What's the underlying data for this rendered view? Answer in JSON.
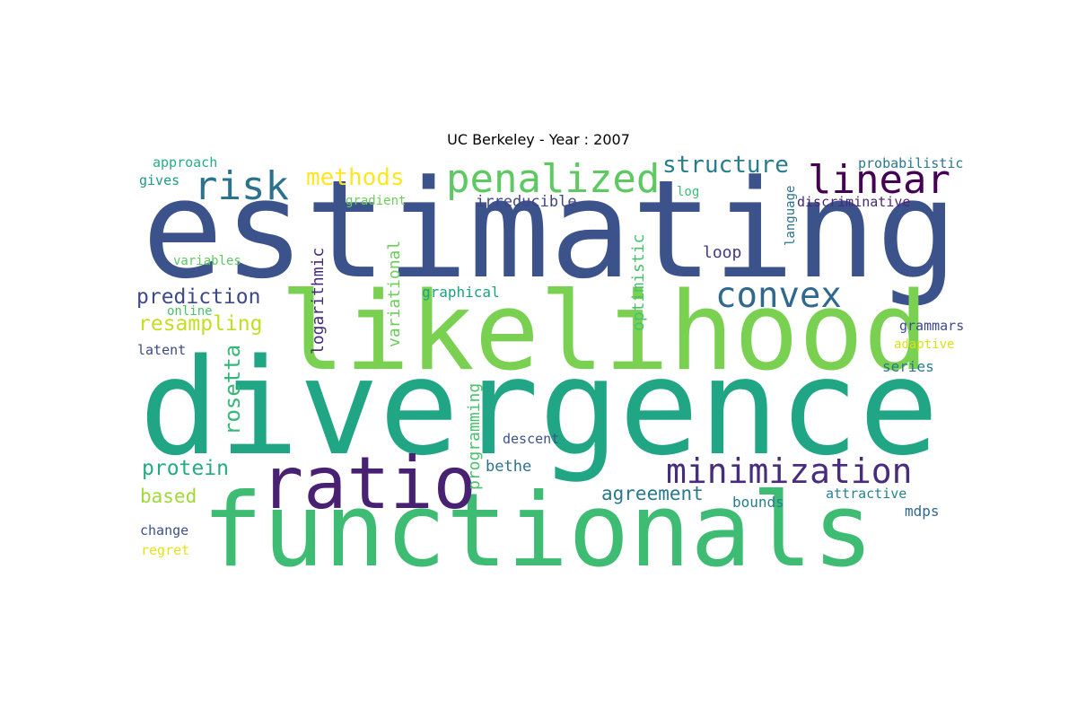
{
  "title": "UC Berkeley - Year : 2007",
  "words": [
    {
      "text": "estimating",
      "color": "#3b528b"
    },
    {
      "text": "divergence",
      "color": "#21a685"
    },
    {
      "text": "likelihood",
      "color": "#7ad151"
    },
    {
      "text": "functionals",
      "color": "#3fbc73"
    },
    {
      "text": "ratio",
      "color": "#482173"
    },
    {
      "text": "minimization",
      "color": "#472d7b"
    },
    {
      "text": "penalized",
      "color": "#5ec962"
    },
    {
      "text": "linear",
      "color": "#440154"
    },
    {
      "text": "risk",
      "color": "#2c728e"
    },
    {
      "text": "convex",
      "color": "#31688e"
    },
    {
      "text": "structure",
      "color": "#287c8e"
    },
    {
      "text": "methods",
      "color": "#fde725"
    },
    {
      "text": "prediction",
      "color": "#3e4989"
    },
    {
      "text": "resampling",
      "color": "#c2df23"
    },
    {
      "text": "protein",
      "color": "#25ab82"
    },
    {
      "text": "agreement",
      "color": "#2a788e"
    },
    {
      "text": "based",
      "color": "#a0da39"
    },
    {
      "text": "rosetta",
      "color": "#35b779"
    },
    {
      "text": "logarithmic",
      "color": "#482878"
    },
    {
      "text": "variational",
      "color": "#6ccd5a"
    },
    {
      "text": "optimistic",
      "color": "#4ac16d"
    },
    {
      "text": "programming",
      "color": "#4ac16d"
    },
    {
      "text": "irreducible",
      "color": "#414487"
    },
    {
      "text": "graphical",
      "color": "#1fa187"
    },
    {
      "text": "loop",
      "color": "#443983"
    },
    {
      "text": "bethe",
      "color": "#2c728e"
    },
    {
      "text": "descent",
      "color": "#3b528b"
    },
    {
      "text": "bounds",
      "color": "#287d8e"
    },
    {
      "text": "attractive",
      "color": "#26828e"
    },
    {
      "text": "mdps",
      "color": "#31688e"
    },
    {
      "text": "approach",
      "color": "#27ad81"
    },
    {
      "text": "gives",
      "color": "#1f9a8a"
    },
    {
      "text": "gradient",
      "color": "#6ccd5a"
    },
    {
      "text": "log",
      "color": "#3dbc74"
    },
    {
      "text": "probabilistic",
      "color": "#2a788e"
    },
    {
      "text": "discriminative",
      "color": "#482878"
    },
    {
      "text": "language",
      "color": "#2d718e"
    },
    {
      "text": "variables",
      "color": "#5ec962"
    },
    {
      "text": "online",
      "color": "#4ac16d"
    },
    {
      "text": "latent",
      "color": "#3e4989"
    },
    {
      "text": "grammars",
      "color": "#3e4a89"
    },
    {
      "text": "adaptive",
      "color": "#d8e219"
    },
    {
      "text": "series",
      "color": "#2a788e"
    },
    {
      "text": "change",
      "color": "#3b528b"
    },
    {
      "text": "regret",
      "color": "#e5e419"
    }
  ]
}
